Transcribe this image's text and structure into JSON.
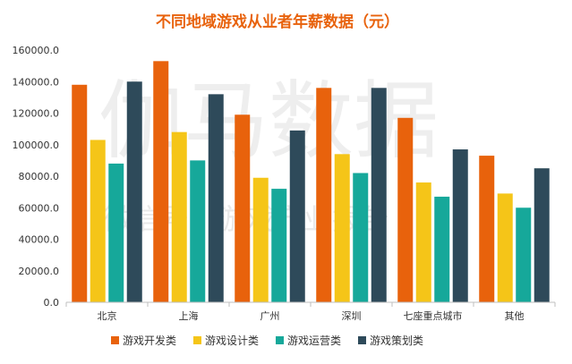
{
  "chart_data": {
    "type": "bar",
    "title": "不同地域游戏从业者年薪数据（元）",
    "categories": [
      "北京",
      "上海",
      "广州",
      "深圳",
      "七座重点城市",
      "其他"
    ],
    "series": [
      {
        "name": "游戏开发类",
        "color": "#E8620C",
        "values": [
          138000,
          153000,
          119000,
          136000,
          117000,
          93000
        ]
      },
      {
        "name": "游戏设计类",
        "color": "#F5C518",
        "values": [
          103000,
          108000,
          79000,
          94000,
          76000,
          69000
        ]
      },
      {
        "name": "游戏运营类",
        "color": "#16A89A",
        "values": [
          88000,
          90000,
          72000,
          82000,
          67000,
          60000
        ]
      },
      {
        "name": "游戏策划类",
        "color": "#2E4A5A",
        "values": [
          140000,
          132000,
          109000,
          136000,
          97000,
          85000
        ]
      }
    ],
    "yticks": [
      "0.0",
      "20000.0",
      "40000.0",
      "60000.0",
      "80000.0",
      "100000.0",
      "120000.0",
      "140000.0",
      "160000.0"
    ],
    "ylim": [
      0,
      160000
    ],
    "grid": false,
    "legend_position": "bottom",
    "title_color": "#E8620C",
    "watermark": {
      "main": "伽马数据",
      "sub": "微信号：游戏产业报告"
    }
  }
}
